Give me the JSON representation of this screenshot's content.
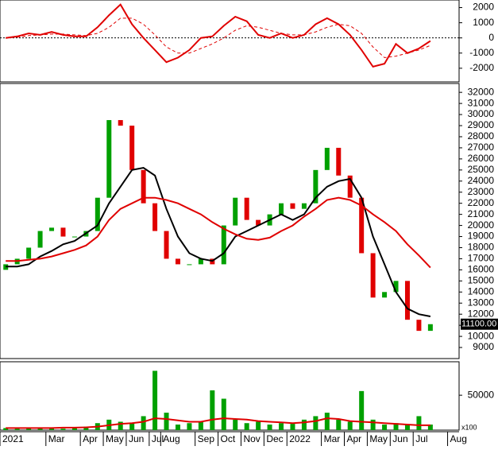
{
  "chart_data": [
    {
      "type": "line",
      "ylim": [
        -2900,
        2500
      ],
      "yticks": [
        -2000,
        -1000,
        0,
        1000,
        2000
      ],
      "zero_line": true,
      "series": [
        {
          "color": "#e00000",
          "width": 2,
          "dash": false,
          "values": [
            0,
            100,
            300,
            200,
            400,
            200,
            100,
            100,
            700,
            1500,
            2200,
            900,
            0,
            -800,
            -1600,
            -1300,
            -800,
            0,
            100,
            800,
            1400,
            1100,
            200,
            0,
            300,
            0,
            200,
            900,
            1300,
            900,
            200,
            -800,
            -1900,
            -1700,
            -400,
            -1000,
            -700,
            -200,
            null,
            null
          ]
        },
        {
          "color": "#e00000",
          "width": 1,
          "dash": true,
          "values": [
            0,
            50,
            150,
            200,
            250,
            250,
            200,
            150,
            300,
            700,
            1300,
            1300,
            900,
            200,
            -600,
            -1000,
            -1000,
            -700,
            -400,
            0,
            500,
            800,
            700,
            500,
            300,
            200,
            200,
            400,
            700,
            900,
            800,
            300,
            -600,
            -1300,
            -1200,
            -1000,
            -800,
            -500,
            null,
            null
          ]
        }
      ]
    },
    {
      "type": "candlestick",
      "ylim": [
        8000,
        32800
      ],
      "yticks": [
        9000,
        10000,
        11000,
        12000,
        13000,
        14000,
        15000,
        16000,
        17000,
        18000,
        19000,
        20000,
        21000,
        22000,
        23000,
        24000,
        25000,
        26000,
        27000,
        28000,
        29000,
        30000,
        31000,
        32000
      ],
      "up_color": "#00a000",
      "down_color": "#e00000",
      "open": [
        16000,
        16500,
        17000,
        18000,
        19500,
        19800,
        19000,
        19000,
        19500,
        22500,
        29500,
        29000,
        25000,
        22000,
        19500,
        17000,
        16500,
        16500,
        17000,
        16500,
        20000,
        22500,
        20500,
        20000,
        21000,
        22000,
        21500,
        22000,
        25000,
        27000,
        24500,
        22500,
        17500,
        13500,
        14000,
        15000,
        11500,
        10500,
        null,
        null
      ],
      "close": [
        16500,
        17000,
        18000,
        19500,
        19800,
        19000,
        19000,
        19500,
        22500,
        29500,
        29000,
        25000,
        22000,
        19500,
        17000,
        16500,
        16500,
        17000,
        16500,
        20000,
        22500,
        20500,
        20000,
        21000,
        22000,
        21500,
        22000,
        25000,
        27000,
        24500,
        22500,
        17500,
        13500,
        14000,
        15000,
        11500,
        10500,
        11100,
        null,
        null
      ],
      "series": [
        {
          "color": "#000000",
          "values": [
            16300,
            16300,
            16500,
            17200,
            17700,
            18300,
            18600,
            19300,
            20000,
            22000,
            23500,
            25000,
            25200,
            24500,
            21500,
            19000,
            17500,
            17000,
            16800,
            17500,
            19000,
            19500,
            20000,
            20500,
            21000,
            20500,
            21000,
            22500,
            23500,
            24000,
            24200,
            22500,
            19000,
            16500,
            14000,
            12500,
            12000,
            11800,
            null,
            null
          ]
        },
        {
          "color": "#e00000",
          "values": [
            16800,
            16800,
            16900,
            17000,
            17200,
            17500,
            17800,
            18200,
            19000,
            20500,
            21500,
            22000,
            22500,
            22500,
            22300,
            22000,
            21500,
            21000,
            20300,
            19700,
            19200,
            18800,
            18700,
            18900,
            19500,
            20000,
            20800,
            21500,
            22300,
            22500,
            22300,
            21800,
            21000,
            20300,
            19500,
            18300,
            17300,
            16200,
            null,
            null
          ]
        }
      ],
      "last_price": {
        "value": 11100,
        "label": "11100.00"
      }
    },
    {
      "type": "bar",
      "ylim": [
        0,
        98000
      ],
      "yticks": [
        50000
      ],
      "y_unit": "x100",
      "categories": [
        "2021",
        null,
        null,
        null,
        "Mar",
        null,
        null,
        "Apr",
        null,
        "May",
        null,
        "Jun",
        null,
        "Jul",
        "Aug",
        null,
        null,
        "Sep",
        null,
        "Oct",
        null,
        "Nov",
        null,
        "Dec",
        null,
        "2022",
        null,
        null,
        "Mar",
        null,
        "Apr",
        null,
        "May",
        null,
        "Jun",
        null,
        "Jul",
        null,
        null,
        "Aug"
      ],
      "color": "#00a000",
      "values": [
        3000,
        2000,
        3000,
        4000,
        3000,
        2000,
        3000,
        5000,
        10000,
        15000,
        12000,
        10000,
        20000,
        85000,
        25000,
        8000,
        10000,
        12000,
        57000,
        45000,
        15000,
        10000,
        12000,
        8000,
        10000,
        9000,
        15000,
        20000,
        25000,
        15000,
        12000,
        56000,
        15000,
        8000,
        10000,
        8000,
        20000,
        8000,
        null,
        null
      ],
      "series": [
        {
          "color": "#e00000",
          "values": [
            3000,
            3000,
            3000,
            3000,
            3000,
            3500,
            3500,
            4000,
            5000,
            7000,
            9000,
            10000,
            12000,
            17000,
            16000,
            14000,
            12000,
            12000,
            15000,
            17000,
            16000,
            15000,
            13000,
            12000,
            11000,
            10000,
            11000,
            13000,
            17000,
            16000,
            13000,
            12000,
            11000,
            10000,
            9000,
            8000,
            7000,
            7000,
            null,
            null
          ]
        }
      ]
    }
  ]
}
